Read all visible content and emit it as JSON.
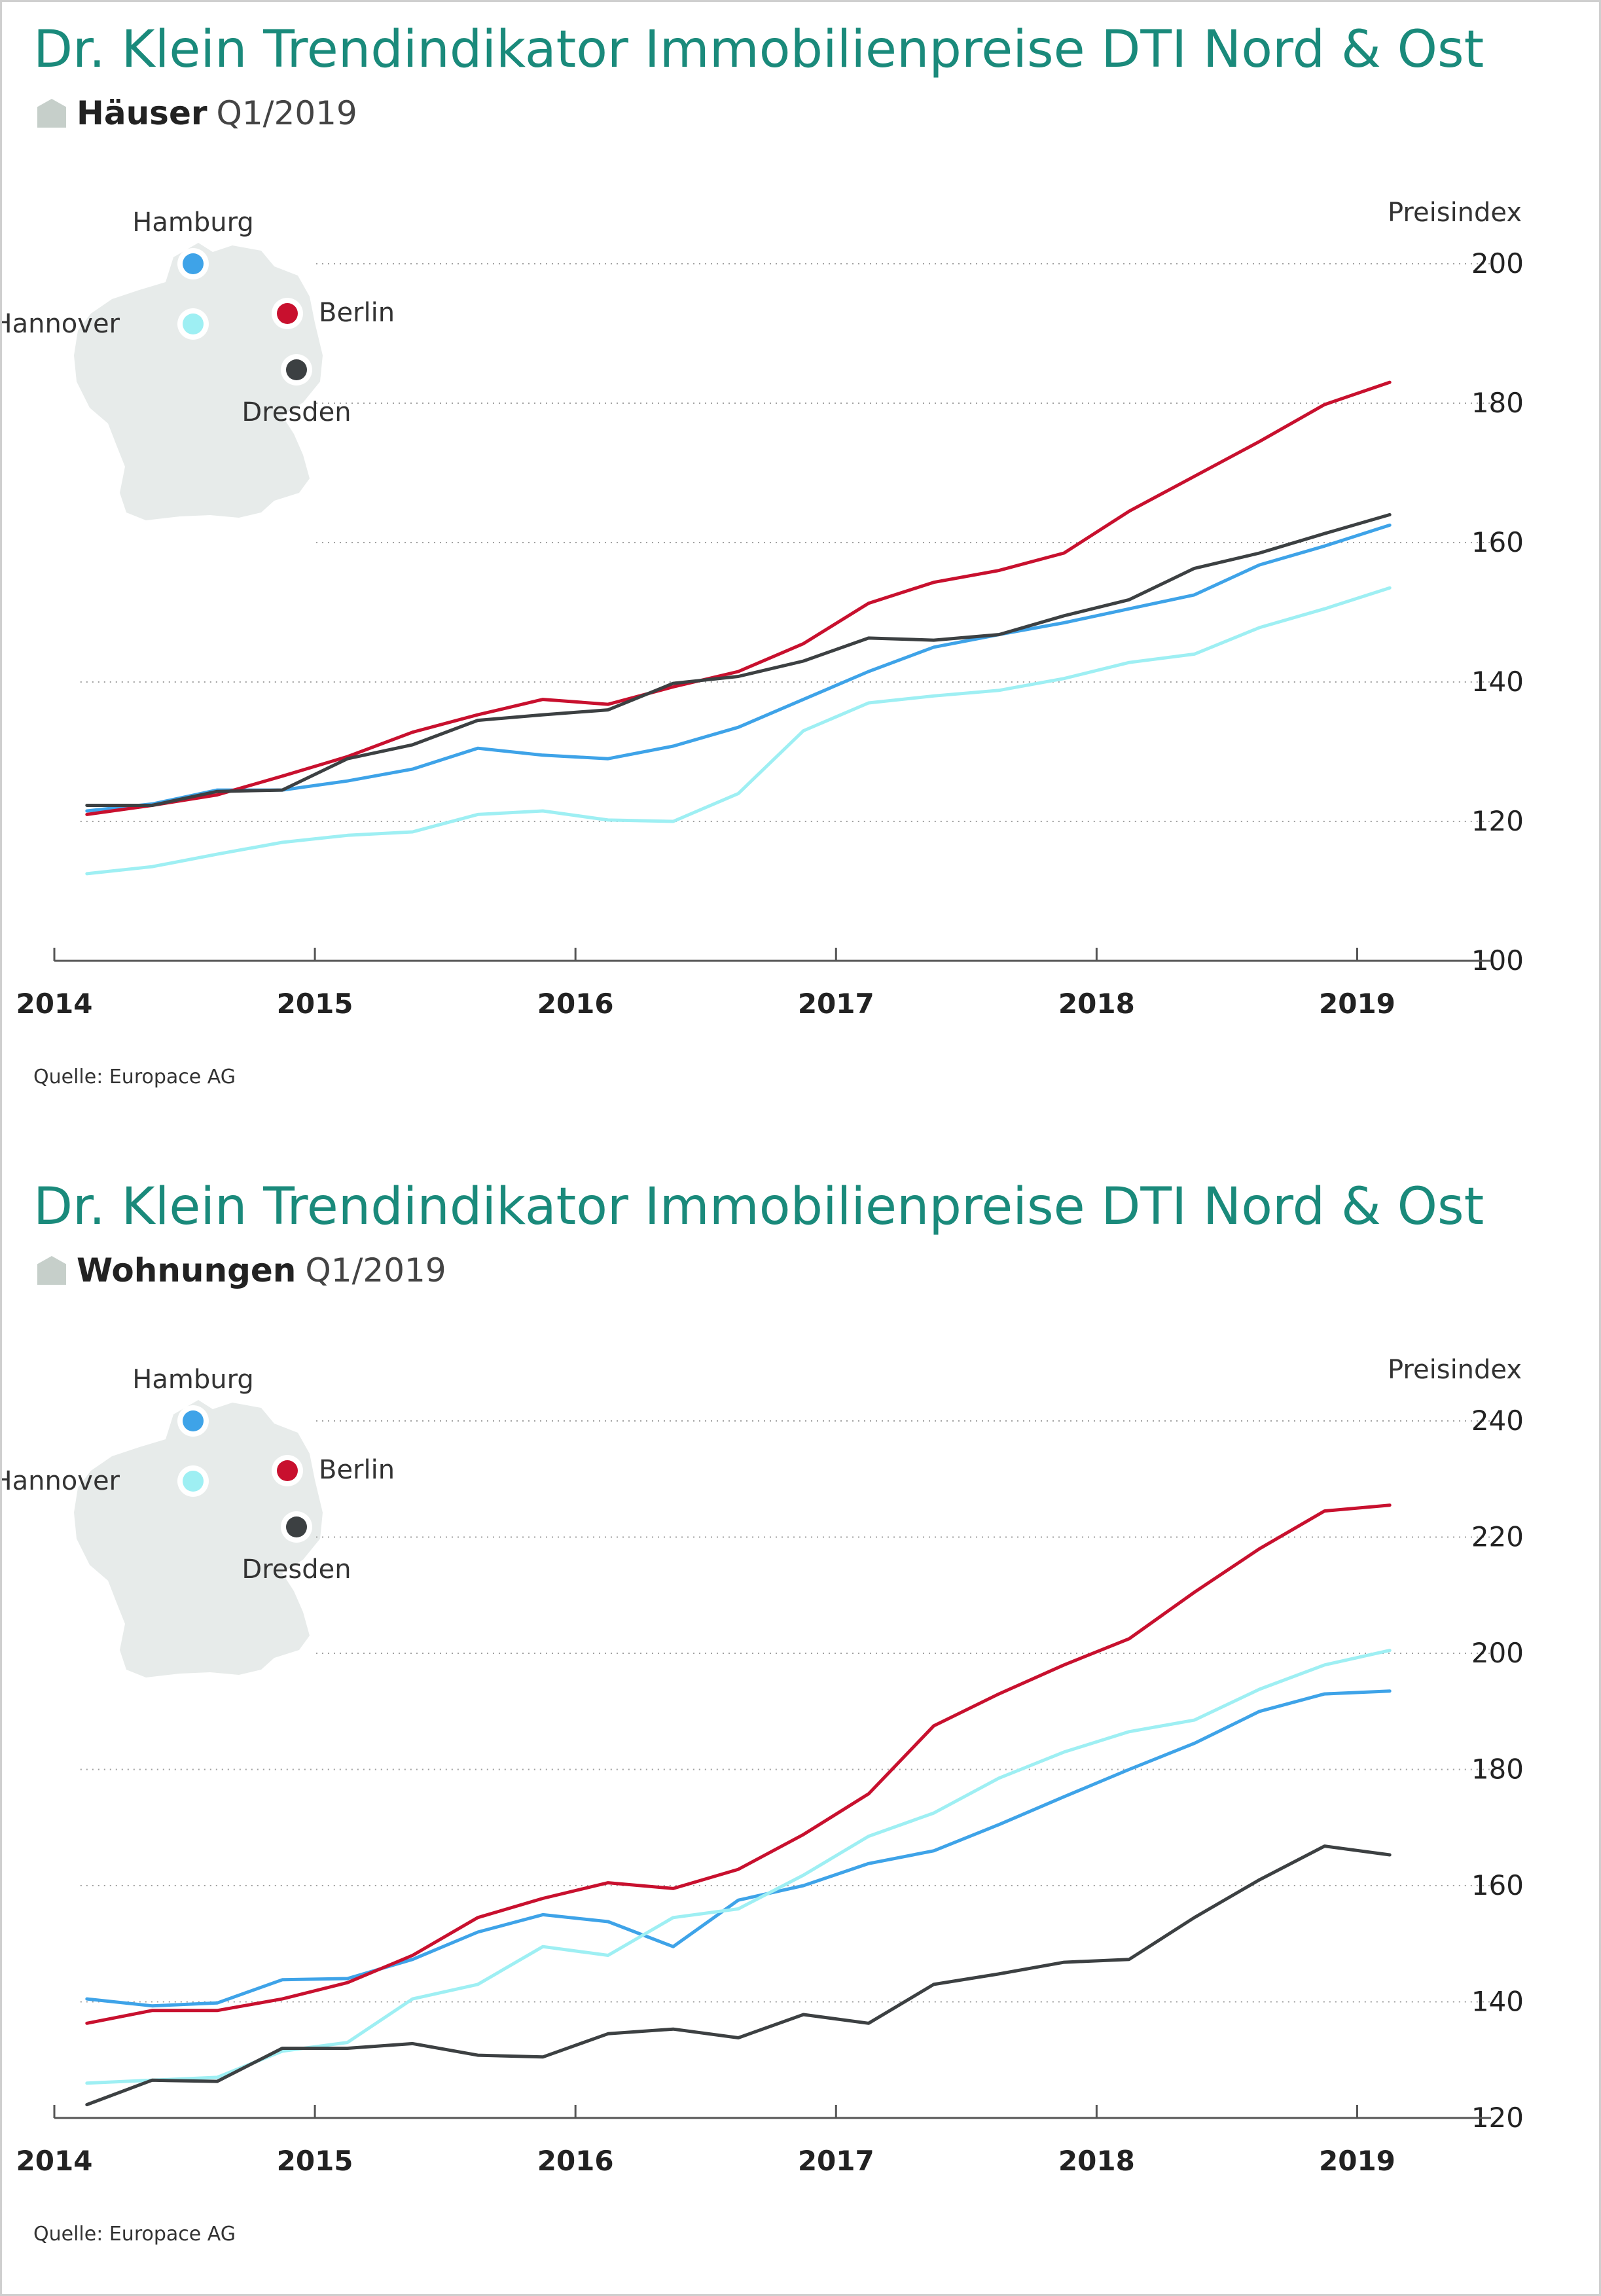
{
  "chart_data": [
    {
      "type": "line",
      "title": "Dr. Klein Trendindikator Immobilienpreise DTI Nord & Ost",
      "subtitle_strong": "Häuser",
      "subtitle_period": "Q1/2019",
      "ylabel": "Preisindex",
      "ylim": [
        100,
        200
      ],
      "yticks": [
        100,
        120,
        140,
        160,
        180,
        200
      ],
      "xlim": [
        2014,
        2019.25
      ],
      "xticks": [
        2014,
        2015,
        2016,
        2017,
        2018,
        2019
      ],
      "xtick_labels": [
        "2014",
        "2015",
        "2016",
        "2017",
        "2018",
        "2019"
      ],
      "x": [
        2014.125,
        2014.375,
        2014.625,
        2014.875,
        2015.125,
        2015.375,
        2015.625,
        2015.875,
        2016.125,
        2016.375,
        2016.625,
        2016.875,
        2017.125,
        2017.375,
        2017.625,
        2017.875,
        2018.125,
        2018.375,
        2018.625,
        2018.875,
        2019.125
      ],
      "series": [
        {
          "name": "Hamburg",
          "color": "#3ea3e8",
          "values": [
            121.5,
            122.5,
            124.5,
            124.5,
            125.8,
            127.5,
            130.5,
            129.5,
            129,
            130.8,
            133.5,
            137.5,
            141.5,
            145,
            146.8,
            148.5,
            150.5,
            152.5,
            156.8,
            159.5,
            162.5
          ]
        },
        {
          "name": "Hannover",
          "color": "#9eeff3",
          "values": [
            112.5,
            113.5,
            115.3,
            117,
            118,
            118.5,
            121,
            121.5,
            120.2,
            120,
            124,
            133,
            137,
            138,
            138.8,
            140.5,
            142.8,
            144,
            147.8,
            150.5,
            153.5
          ]
        },
        {
          "name": "Berlin",
          "color": "#c8102e",
          "values": [
            121,
            122.3,
            123.8,
            126.5,
            129.3,
            132.8,
            135.3,
            137.5,
            136.8,
            139.3,
            141.5,
            145.5,
            151.3,
            154.3,
            156,
            158.5,
            164.5,
            169.5,
            174.5,
            179.8,
            183
          ]
        },
        {
          "name": "Dresden",
          "color": "#3c4042",
          "values": [
            122.3,
            122.3,
            124.3,
            124.5,
            129,
            131,
            134.5,
            135.3,
            136,
            139.8,
            140.8,
            143,
            146.3,
            146,
            146.8,
            149.5,
            151.8,
            156.3,
            158.5,
            161.3,
            164
          ]
        }
      ],
      "source": "Quelle: Europace AG"
    },
    {
      "type": "line",
      "title": "Dr. Klein Trendindikator Immobilienpreise DTI Nord & Ost",
      "subtitle_strong": "Wohnungen",
      "subtitle_period": "Q1/2019",
      "ylabel": "Preisindex",
      "ylim": [
        120,
        240
      ],
      "yticks": [
        120,
        140,
        160,
        180,
        200,
        220,
        240
      ],
      "xlim": [
        2014,
        2019.25
      ],
      "xticks": [
        2014,
        2015,
        2016,
        2017,
        2018,
        2019
      ],
      "xtick_labels": [
        "2014",
        "2015",
        "2016",
        "2017",
        "2018",
        "2019"
      ],
      "x": [
        2014.125,
        2014.375,
        2014.625,
        2014.875,
        2015.125,
        2015.375,
        2015.625,
        2015.875,
        2016.125,
        2016.375,
        2016.625,
        2016.875,
        2017.125,
        2017.375,
        2017.625,
        2017.875,
        2018.125,
        2018.375,
        2018.625,
        2018.875,
        2019.125
      ],
      "series": [
        {
          "name": "Hamburg",
          "color": "#3ea3e8",
          "values": [
            140.5,
            139.3,
            139.8,
            143.8,
            144,
            147.3,
            152,
            155,
            153.8,
            149.5,
            157.5,
            160,
            163.8,
            166,
            170.5,
            175.3,
            180,
            184.5,
            190,
            193,
            193.5
          ]
        },
        {
          "name": "Hannover",
          "color": "#9eeff3",
          "values": [
            126,
            126.5,
            127,
            131.5,
            133,
            140.5,
            143,
            149.5,
            148,
            154.5,
            156,
            161.8,
            168.5,
            172.5,
            178.5,
            183,
            186.5,
            188.5,
            193.8,
            198,
            200.5
          ]
        },
        {
          "name": "Berlin",
          "color": "#c8102e",
          "values": [
            136.3,
            138.5,
            138.5,
            140.5,
            143.3,
            148,
            154.5,
            157.8,
            160.5,
            159.5,
            162.8,
            168.8,
            175.8,
            187.5,
            193,
            198,
            202.5,
            210.5,
            218,
            224.5,
            225.5
          ]
        },
        {
          "name": "Dresden",
          "color": "#3c4042",
          "values": [
            122.3,
            126.5,
            126.3,
            132,
            132,
            132.8,
            130.8,
            130.5,
            134.5,
            135.3,
            133.8,
            137.8,
            136.3,
            143,
            144.8,
            146.8,
            147.3,
            154.5,
            161,
            166.8,
            165.3
          ]
        }
      ],
      "source": "Quelle: Europace AG"
    }
  ]
}
